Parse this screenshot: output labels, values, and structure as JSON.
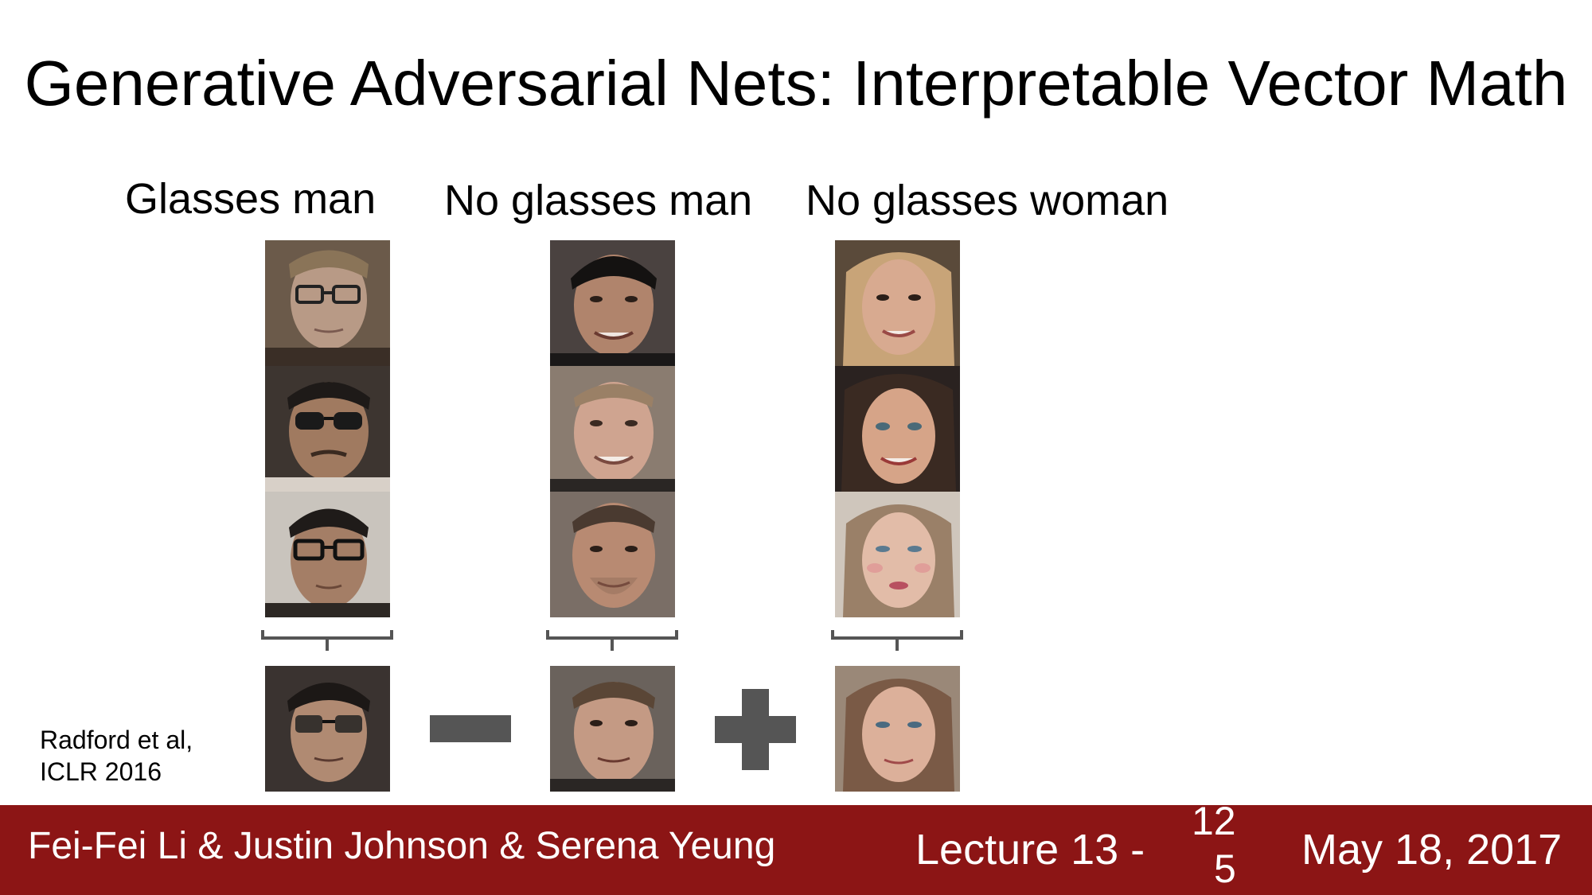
{
  "slide": {
    "title": "Generative Adversarial Nets: Interpretable Vector Math",
    "columns": [
      {
        "label": "Glasses man"
      },
      {
        "label": "No glasses man"
      },
      {
        "label": "No glasses woman"
      }
    ],
    "operators": [
      "minus-icon",
      "plus-icon"
    ],
    "citation_line1": "Radford et al,",
    "citation_line2": "ICLR 2016"
  },
  "footer": {
    "authors": "Fei-Fei Li & Justin Johnson & Serena Yeung",
    "lecture": "Lecture 13 -",
    "page_top": "12",
    "page_bottom": "5",
    "date": "May 18, 2017",
    "background_color": "#8c1515"
  },
  "colors": {
    "operator": "#555555",
    "brace": "#555555"
  }
}
